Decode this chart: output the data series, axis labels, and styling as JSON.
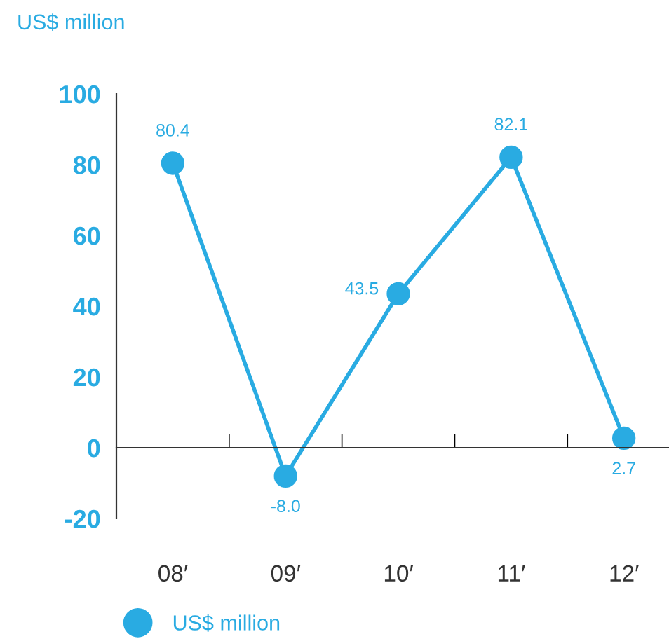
{
  "chart_data": {
    "type": "line",
    "ylabel": "US$ million",
    "categories": [
      "08′",
      "09′",
      "10′",
      "11′",
      "12′"
    ],
    "series": [
      {
        "name": "US$ million",
        "color": "#29abe2",
        "values": [
          80.4,
          -8.0,
          43.5,
          82.1,
          2.7
        ],
        "value_labels": [
          "80.4",
          "-8.0",
          "43.5",
          "82.1",
          "2.7"
        ]
      }
    ],
    "ylim": [
      -20,
      100
    ],
    "yticks": [
      -20,
      0,
      20,
      40,
      60,
      80,
      100
    ],
    "marker": "circle",
    "line_style": "solid",
    "legend": "bottom left"
  }
}
